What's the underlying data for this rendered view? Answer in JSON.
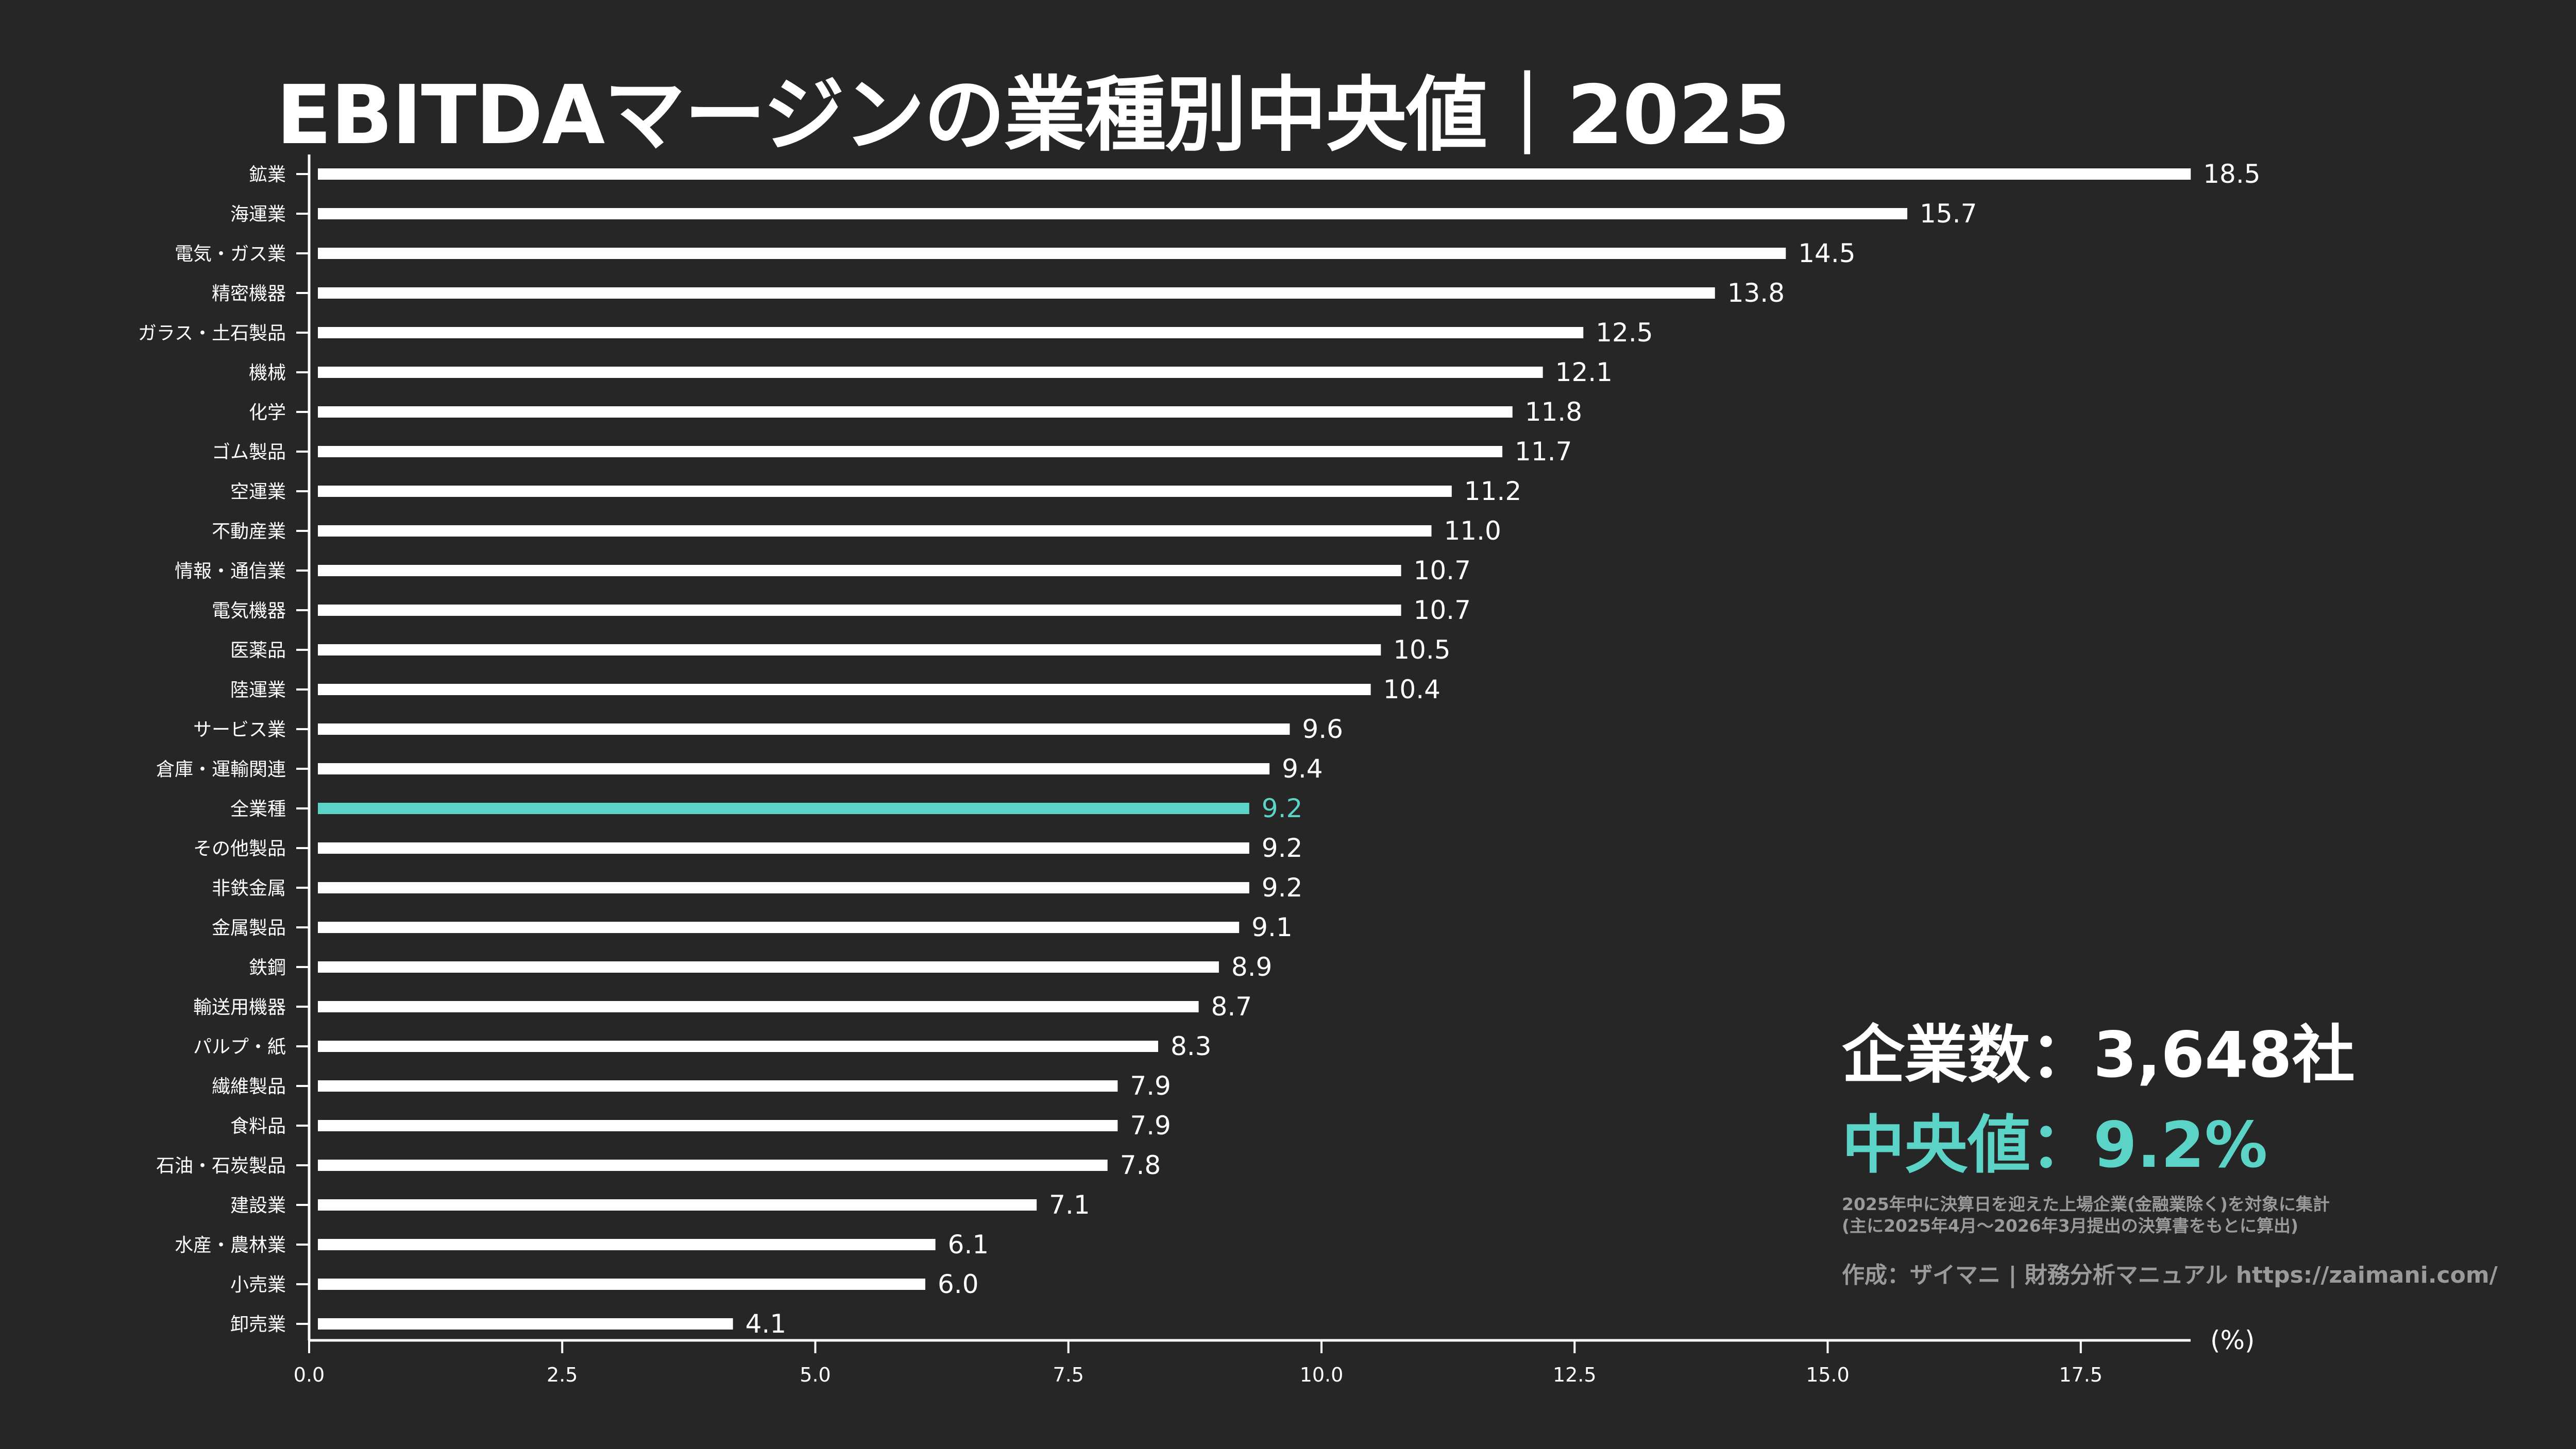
{
  "title": "EBITDAマージンの業種別中央値｜2025",
  "colors": {
    "background": "#262626",
    "bar": "#ffffff",
    "highlight": "#5bd3c7",
    "note": "#9a9a9a"
  },
  "annotation": {
    "company_count": "企業数：3,648社",
    "median": "中央値：9.2%",
    "note_line1": "2025年中に決算日を迎えた上場企業(金融業除く)を対象に集計",
    "note_line2": "(主に2025年4月〜2026年3月提出の決算書をもとに算出)",
    "credit": "作成：ザイマニ | 財務分析マニュアル https://zaimani.com/"
  },
  "chart_data": {
    "type": "bar",
    "orientation": "horizontal",
    "title": "EBITDAマージンの業種別中央値｜2025",
    "xlabel": "(%)",
    "ylabel": "",
    "xlim": [
      0,
      18.5
    ],
    "xticks": [
      "0.0",
      "2.5",
      "5.0",
      "7.5",
      "10.0",
      "12.5",
      "15.0",
      "17.5"
    ],
    "grid": false,
    "highlight_category": "全業種",
    "categories": [
      "鉱業",
      "海運業",
      "電気・ガス業",
      "精密機器",
      "ガラス・土石製品",
      "機械",
      "化学",
      "ゴム製品",
      "空運業",
      "不動産業",
      "情報・通信業",
      "電気機器",
      "医薬品",
      "陸運業",
      "サービス業",
      "倉庫・運輸関連",
      "全業種",
      "その他製品",
      "非鉄金属",
      "金属製品",
      "鉄鋼",
      "輸送用機器",
      "パルプ・紙",
      "繊維製品",
      "食料品",
      "石油・石炭製品",
      "建設業",
      "水産・農林業",
      "小売業",
      "卸売業"
    ],
    "values": [
      18.5,
      15.7,
      14.5,
      13.8,
      12.5,
      12.1,
      11.8,
      11.7,
      11.2,
      11.0,
      10.7,
      10.7,
      10.5,
      10.4,
      9.6,
      9.4,
      9.2,
      9.2,
      9.2,
      9.1,
      8.9,
      8.7,
      8.3,
      7.9,
      7.9,
      7.8,
      7.1,
      6.1,
      6.0,
      4.1
    ],
    "value_labels": [
      "18.5",
      "15.7",
      "14.5",
      "13.8",
      "12.5",
      "12.1",
      "11.8",
      "11.7",
      "11.2",
      "11.0",
      "10.7",
      "10.7",
      "10.5",
      "10.4",
      "9.6",
      "9.4",
      "9.2",
      "9.2",
      "9.2",
      "9.1",
      "8.9",
      "8.7",
      "8.3",
      "7.9",
      "7.9",
      "7.8",
      "7.1",
      "6.1",
      "6.0",
      "4.1"
    ]
  }
}
